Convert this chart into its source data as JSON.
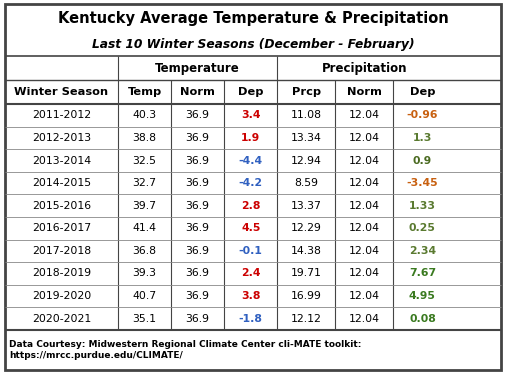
{
  "title1": "Kentucky Average Temperature & Precipitation",
  "title2": "Last 10 Winter Seasons (December - February)",
  "col_headers": [
    "Winter Season",
    "Temp",
    "Norm",
    "Dep",
    "Prcp",
    "Norm",
    "Dep"
  ],
  "rows": [
    [
      "2011-2012",
      "40.3",
      "36.9",
      "3.4",
      "11.08",
      "12.04",
      "-0.96"
    ],
    [
      "2012-2013",
      "38.8",
      "36.9",
      "1.9",
      "13.34",
      "12.04",
      "1.3"
    ],
    [
      "2013-2014",
      "32.5",
      "36.9",
      "-4.4",
      "12.94",
      "12.04",
      "0.9"
    ],
    [
      "2014-2015",
      "32.7",
      "36.9",
      "-4.2",
      "8.59",
      "12.04",
      "-3.45"
    ],
    [
      "2015-2016",
      "39.7",
      "36.9",
      "2.8",
      "13.37",
      "12.04",
      "1.33"
    ],
    [
      "2016-2017",
      "41.4",
      "36.9",
      "4.5",
      "12.29",
      "12.04",
      "0.25"
    ],
    [
      "2017-2018",
      "36.8",
      "36.9",
      "-0.1",
      "14.38",
      "12.04",
      "2.34"
    ],
    [
      "2018-2019",
      "39.3",
      "36.9",
      "2.4",
      "19.71",
      "12.04",
      "7.67"
    ],
    [
      "2019-2020",
      "40.7",
      "36.9",
      "3.8",
      "16.99",
      "12.04",
      "4.95"
    ],
    [
      "2020-2021",
      "35.1",
      "36.9",
      "-1.8",
      "12.12",
      "12.04",
      "0.08"
    ]
  ],
  "temp_dep_colors": [
    "#cc0000",
    "#cc0000",
    "#3060c0",
    "#3060c0",
    "#cc0000",
    "#cc0000",
    "#3060c0",
    "#cc0000",
    "#cc0000",
    "#3060c0"
  ],
  "prcp_dep_colors": [
    "#c86010",
    "#5a7a30",
    "#4a6a20",
    "#c86010",
    "#5a7a30",
    "#5a7a30",
    "#5a7a30",
    "#3a7a20",
    "#3a7a20",
    "#3a7a20"
  ],
  "footer_line1": "Data Courtesy: Midwestern Regional Climate Center cli-MATE toolkit:",
  "footer_line2": "https://mrcc.purdue.edu/CLIMATE/",
  "bg_color": "#ffffff",
  "border_color": "#444444"
}
